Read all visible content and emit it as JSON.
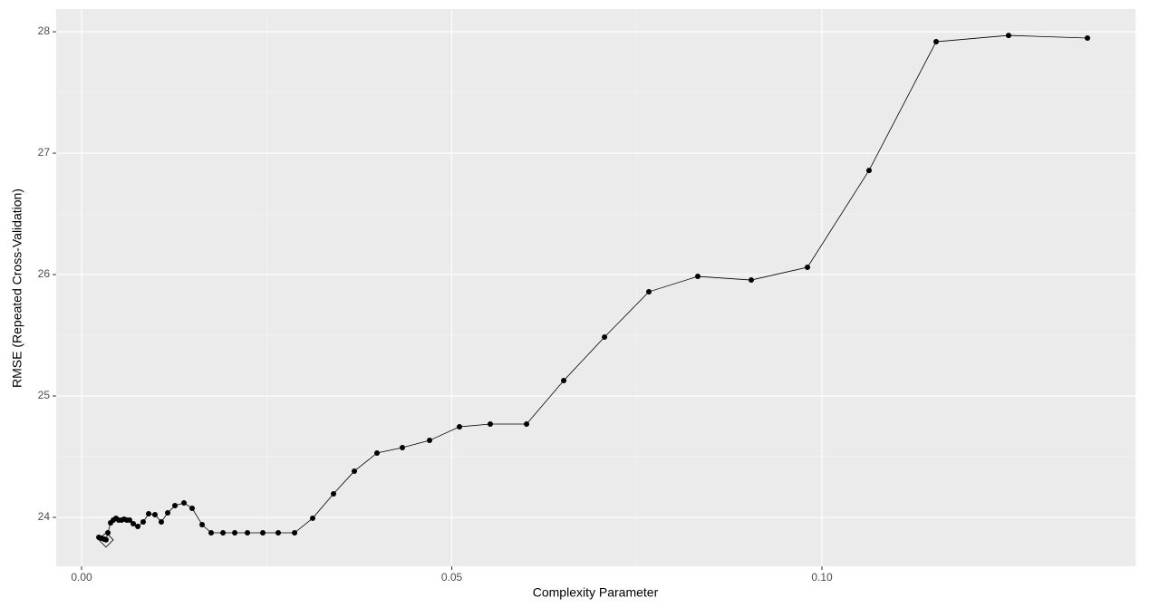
{
  "chart_data": {
    "type": "line",
    "x_label": "Complexity Parameter",
    "y_label": "RMSE (Repeated Cross-Validation)",
    "x": [
      0.00233,
      0.00269,
      0.00306,
      0.0033,
      0.00355,
      0.00392,
      0.00428,
      0.00465,
      0.00502,
      0.00539,
      0.00575,
      0.00612,
      0.00649,
      0.00698,
      0.00759,
      0.00832,
      0.00906,
      0.00991,
      0.01077,
      0.01163,
      0.01261,
      0.01383,
      0.01493,
      0.01628,
      0.0175,
      0.0191,
      0.02069,
      0.0224,
      0.02448,
      0.02656,
      0.02877,
      0.03121,
      0.03403,
      0.03684,
      0.0399,
      0.04333,
      0.047,
      0.05104,
      0.0552,
      0.0601,
      0.06512,
      0.07063,
      0.07662,
      0.08323,
      0.09045,
      0.09804,
      0.10636,
      0.11542,
      0.12521,
      0.13586
    ],
    "series": [
      {
        "color": "#000000",
        "values": [
          23.836,
          23.828,
          23.821,
          23.815,
          23.873,
          23.955,
          23.978,
          23.993,
          23.978,
          23.978,
          23.985,
          23.978,
          23.978,
          23.948,
          23.925,
          23.963,
          24.03,
          24.022,
          23.963,
          24.037,
          24.097,
          24.119,
          24.075,
          23.94,
          23.873,
          23.873,
          23.873,
          23.873,
          23.873,
          23.873,
          23.873,
          23.993,
          24.194,
          24.381,
          24.53,
          24.575,
          24.634,
          24.746,
          24.769,
          24.769,
          25.127,
          25.485,
          25.858,
          25.985,
          25.955,
          26.06,
          26.858,
          27.918,
          27.97,
          27.948
        ]
      }
    ],
    "xlim": [
      -0.00343,
      0.14235
    ],
    "ylim": [
      23.597,
      28.187
    ],
    "xticks": [
      {
        "value": 0,
        "label": "0.00"
      },
      {
        "value": 0.05,
        "label": "0.05"
      },
      {
        "value": 0.1,
        "label": "0.10"
      }
    ],
    "yticks": [
      24,
      25,
      26,
      27,
      28
    ],
    "grid": true
  }
}
